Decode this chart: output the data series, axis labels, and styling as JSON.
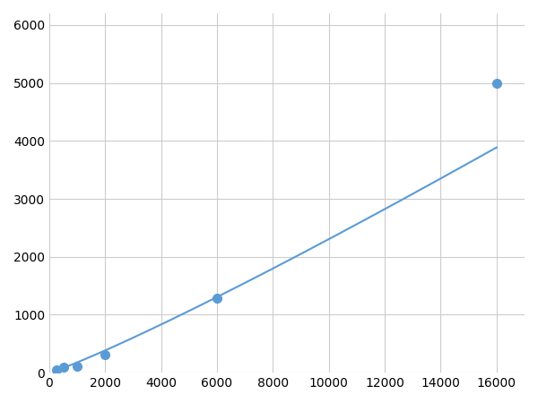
{
  "x": [
    250,
    500,
    1000,
    2000,
    6000,
    16000
  ],
  "y": [
    50,
    100,
    110,
    310,
    1280,
    5000
  ],
  "line_color": "#5b9bd5",
  "marker_color": "#5b9bd5",
  "marker_size": 7,
  "linewidth": 1.5,
  "xlim": [
    0,
    17000
  ],
  "ylim": [
    0,
    6200
  ],
  "xticks": [
    0,
    2000,
    4000,
    6000,
    8000,
    10000,
    12000,
    14000,
    16000
  ],
  "yticks": [
    0,
    1000,
    2000,
    3000,
    4000,
    5000,
    6000
  ],
  "grid_color": "#cccccc",
  "background_color": "#ffffff",
  "tick_fontsize": 10
}
